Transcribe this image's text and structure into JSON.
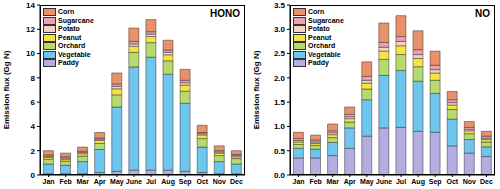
{
  "chart_data": [
    {
      "type": "bar",
      "title": "HONO",
      "ylabel": "Emission flux (Gg N)",
      "stacked": true,
      "grid": false,
      "legend": "top-left",
      "categories": [
        "Jan",
        "Feb",
        "Mar",
        "Apr",
        "May",
        "June",
        "Jul",
        "Aug",
        "Sep",
        "Oct",
        "Nov",
        "Dec"
      ],
      "ylim": [
        0,
        14
      ],
      "yticks": [
        0,
        2,
        4,
        6,
        8,
        10,
        12,
        14
      ],
      "series": [
        {
          "name": "Corn",
          "color": "#e8916a",
          "values": [
            0.35,
            0.3,
            0.35,
            0.45,
            0.9,
            1.1,
            1.0,
            0.8,
            0.9,
            0.6,
            0.4,
            0.3
          ]
        },
        {
          "name": "Sugarcane",
          "color": "#ef9fb2",
          "values": [
            0.1,
            0.1,
            0.1,
            0.1,
            0.2,
            0.2,
            0.2,
            0.2,
            0.2,
            0.1,
            0.1,
            0.1
          ]
        },
        {
          "name": "Potato",
          "color": "#f6d2c0",
          "values": [
            0.1,
            0.1,
            0.1,
            0.1,
            0.2,
            0.2,
            0.2,
            0.2,
            0.2,
            0.1,
            0.1,
            0.1
          ]
        },
        {
          "name": "Peanut",
          "color": "#f5e444",
          "values": [
            0.15,
            0.15,
            0.2,
            0.25,
            0.5,
            0.5,
            0.5,
            0.5,
            0.5,
            0.3,
            0.2,
            0.15
          ]
        },
        {
          "name": "Orchard",
          "color": "#b6da6c",
          "values": [
            0.4,
            0.35,
            0.45,
            0.5,
            1.0,
            1.2,
            1.2,
            1.1,
            1.0,
            0.7,
            0.5,
            0.45
          ]
        },
        {
          "name": "Vegetable",
          "color": "#6ec6ee",
          "values": [
            0.8,
            0.7,
            1.0,
            1.9,
            5.3,
            8.5,
            9.3,
            7.9,
            5.6,
            2.1,
            1.0,
            0.8
          ]
        },
        {
          "name": "Paddy",
          "color": "#b4aee0",
          "values": [
            0.1,
            0.1,
            0.1,
            0.2,
            0.3,
            0.4,
            0.4,
            0.4,
            0.3,
            0.2,
            0.1,
            0.1
          ]
        }
      ]
    },
    {
      "type": "bar",
      "title": "NO",
      "ylabel": "Emission flux (Gg N)",
      "stacked": true,
      "grid": false,
      "legend": "top-left",
      "categories": [
        "Jan",
        "Feb",
        "Mar",
        "Apr",
        "May",
        "June",
        "Jul",
        "Aug",
        "Sep",
        "Oct",
        "Nov",
        "Dec"
      ],
      "ylim": [
        0,
        3.5
      ],
      "yticks": [
        {
          "value": 0,
          "label": "0.0"
        },
        0.5,
        {
          "value": 1,
          "label": "1.0"
        },
        1.5,
        {
          "value": 2,
          "label": "2.0"
        },
        2.5,
        {
          "value": 3,
          "label": "3.0"
        },
        3.5
      ],
      "series": [
        {
          "name": "Corn",
          "color": "#e8916a",
          "values": [
            0.13,
            0.1,
            0.14,
            0.15,
            0.3,
            0.4,
            0.43,
            0.39,
            0.29,
            0.17,
            0.12,
            0.1
          ]
        },
        {
          "name": "Sugarcane",
          "color": "#ef9fb2",
          "values": [
            0.04,
            0.04,
            0.04,
            0.05,
            0.08,
            0.1,
            0.1,
            0.1,
            0.09,
            0.06,
            0.04,
            0.04
          ]
        },
        {
          "name": "Potato",
          "color": "#f6d2c0",
          "values": [
            0.03,
            0.03,
            0.04,
            0.04,
            0.06,
            0.08,
            0.09,
            0.08,
            0.07,
            0.05,
            0.03,
            0.03
          ]
        },
        {
          "name": "Peanut",
          "color": "#f5e444",
          "values": [
            0.05,
            0.04,
            0.06,
            0.07,
            0.12,
            0.17,
            0.18,
            0.17,
            0.15,
            0.09,
            0.06,
            0.05
          ]
        },
        {
          "name": "Orchard",
          "color": "#b6da6c",
          "values": [
            0.08,
            0.08,
            0.1,
            0.12,
            0.22,
            0.33,
            0.33,
            0.3,
            0.27,
            0.2,
            0.12,
            0.1
          ]
        },
        {
          "name": "Vegetable",
          "color": "#6ec6ee",
          "values": [
            0.2,
            0.18,
            0.27,
            0.42,
            0.75,
            1.08,
            1.17,
            1.03,
            0.8,
            0.55,
            0.28,
            0.2
          ]
        },
        {
          "name": "Paddy",
          "color": "#b4aee0",
          "values": [
            0.35,
            0.35,
            0.4,
            0.55,
            0.8,
            0.97,
            0.98,
            0.9,
            0.88,
            0.6,
            0.45,
            0.38
          ]
        }
      ]
    }
  ]
}
